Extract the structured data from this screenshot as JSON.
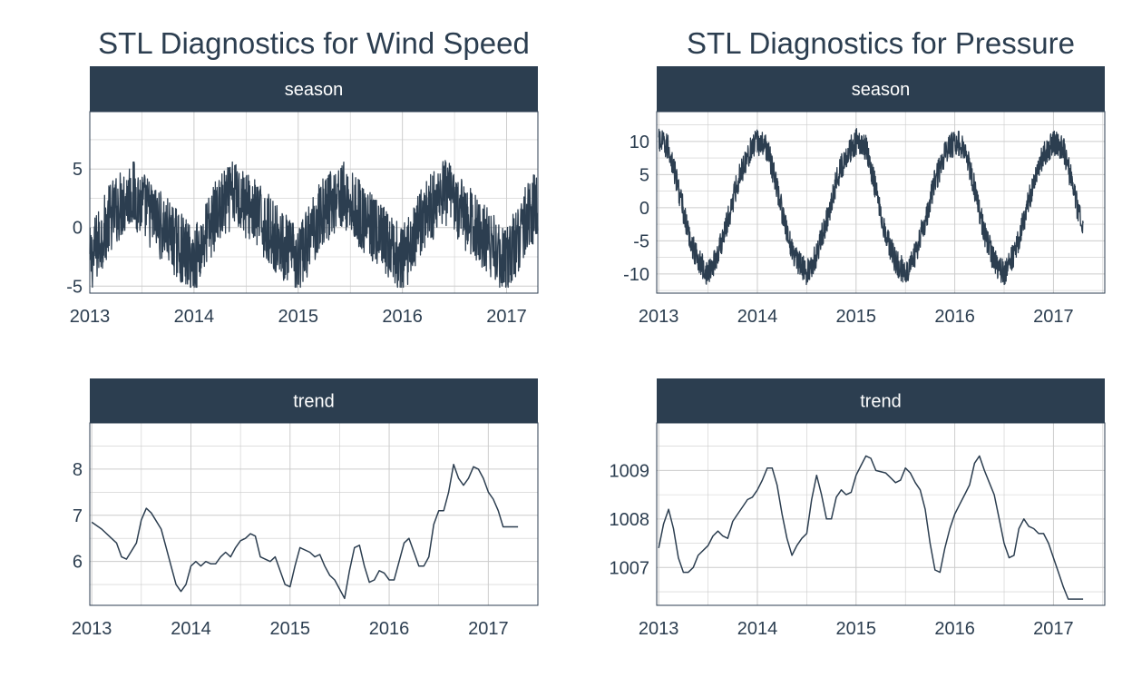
{
  "titles": {
    "left": "STL Diagnostics for Wind Speed",
    "right": "STL Diagnostics for Pressure"
  },
  "colors": {
    "strip": "#2c3e50",
    "strip_text": "#ffffff",
    "line": "#2c3e50",
    "grid": "#cccccc",
    "axis_text": "#2c3e50"
  },
  "chart_data": [
    {
      "type": "line",
      "group": "Wind Speed",
      "facet": "season",
      "xlim": [
        2013.0,
        2017.3
      ],
      "x_ticks": [
        "2013",
        "2014",
        "2015",
        "2016",
        "2017"
      ],
      "y_ticks": [
        "5",
        "0",
        "-5"
      ],
      "y_tick_values": [
        5,
        0,
        -5
      ],
      "ylim": [
        -5.6,
        9.9
      ],
      "approx": true,
      "profile": {
        "x": [
          2013.0,
          2013.1,
          2013.2,
          2013.3,
          2013.4,
          2013.5,
          2013.6,
          2013.7,
          2013.8,
          2013.9,
          2014.0
        ],
        "y": [
          -3.0,
          -1.0,
          1.0,
          2.0,
          3.0,
          2.0,
          1.0,
          0.0,
          -1.0,
          -2.0,
          -3.0
        ]
      },
      "noise": 3.0,
      "xrange": [
        2013.0,
        2017.3
      ],
      "yclip": [
        -5.1,
        8.8
      ],
      "n": 1550
    },
    {
      "type": "line",
      "group": "Pressure",
      "facet": "season",
      "xlim": [
        2012.98,
        2017.52
      ],
      "x_ticks": [
        "2013",
        "2014",
        "2015",
        "2016",
        "2017"
      ],
      "y_ticks": [
        "10",
        "5",
        "0",
        "-5",
        "-10"
      ],
      "y_tick_values": [
        10,
        5,
        0,
        -5,
        -10
      ],
      "ylim": [
        -12.9,
        14.5
      ],
      "approx": true,
      "profile": {
        "x": [
          2013.0,
          2013.1,
          2013.2,
          2013.3,
          2013.4,
          2013.5,
          2013.6,
          2013.7,
          2013.8,
          2013.9,
          2014.0
        ],
        "y": [
          10,
          9,
          3,
          -4,
          -8,
          -10,
          -7,
          -2,
          4,
          8,
          10
        ]
      },
      "noise": 2.0,
      "xrange": [
        2013.0,
        2017.3
      ],
      "yclip": [
        -11.6,
        13.0
      ],
      "n": 1550
    },
    {
      "type": "line",
      "group": "Wind Speed",
      "facet": "trend",
      "xlim": [
        2012.98,
        2017.5
      ],
      "x_ticks": [
        "2013",
        "2014",
        "2015",
        "2016",
        "2017"
      ],
      "y_ticks": [
        "8",
        "7",
        "6"
      ],
      "y_tick_values": [
        8,
        7,
        6
      ],
      "ylim": [
        5.05,
        9.0
      ],
      "x": [
        2013.0,
        2013.1,
        2013.2,
        2013.25,
        2013.3,
        2013.35,
        2013.45,
        2013.5,
        2013.55,
        2013.6,
        2013.7,
        2013.75,
        2013.8,
        2013.85,
        2013.9,
        2013.95,
        2014.0,
        2014.05,
        2014.1,
        2014.15,
        2014.2,
        2014.25,
        2014.3,
        2014.35,
        2014.4,
        2014.45,
        2014.5,
        2014.55,
        2014.6,
        2014.65,
        2014.7,
        2014.8,
        2014.85,
        2014.9,
        2014.95,
        2015.0,
        2015.05,
        2015.1,
        2015.2,
        2015.25,
        2015.3,
        2015.35,
        2015.4,
        2015.45,
        2015.55,
        2015.6,
        2015.65,
        2015.7,
        2015.75,
        2015.8,
        2015.85,
        2015.9,
        2015.95,
        2016.0,
        2016.05,
        2016.1,
        2016.15,
        2016.2,
        2016.25,
        2016.3,
        2016.35,
        2016.4,
        2016.45,
        2016.5,
        2016.55,
        2016.6,
        2016.65,
        2016.7,
        2016.75,
        2016.8,
        2016.85,
        2016.9,
        2016.95,
        2017.0,
        2017.05,
        2017.1,
        2017.15,
        2017.2,
        2017.25,
        2017.3
      ],
      "y": [
        6.85,
        6.7,
        6.5,
        6.4,
        6.1,
        6.05,
        6.4,
        6.9,
        7.15,
        7.05,
        6.7,
        6.3,
        5.9,
        5.5,
        5.35,
        5.5,
        5.9,
        6.0,
        5.9,
        6.0,
        5.95,
        5.95,
        6.1,
        6.2,
        6.1,
        6.3,
        6.45,
        6.5,
        6.6,
        6.55,
        6.1,
        6.0,
        6.1,
        5.8,
        5.5,
        5.45,
        5.9,
        6.3,
        6.2,
        6.1,
        6.15,
        5.9,
        5.7,
        5.6,
        5.2,
        5.8,
        6.3,
        6.35,
        5.9,
        5.55,
        5.6,
        5.8,
        5.75,
        5.6,
        5.6,
        6.0,
        6.4,
        6.5,
        6.2,
        5.9,
        5.9,
        6.1,
        6.8,
        7.1,
        7.1,
        7.5,
        8.1,
        7.8,
        7.65,
        7.8,
        8.05,
        8.0,
        7.8,
        7.5,
        7.35,
        7.1,
        6.75,
        6.75,
        6.75,
        6.75
      ]
    },
    {
      "type": "line",
      "group": "Pressure",
      "facet": "trend",
      "xlim": [
        2012.98,
        2017.52
      ],
      "x_ticks": [
        "2013",
        "2014",
        "2015",
        "2016",
        "2017"
      ],
      "y_ticks": [
        "1009",
        "1008",
        "1007"
      ],
      "y_tick_values": [
        1009,
        1008,
        1007
      ],
      "ylim": [
        1006.22,
        1009.98
      ],
      "x": [
        2013.0,
        2013.05,
        2013.1,
        2013.15,
        2013.2,
        2013.25,
        2013.3,
        2013.35,
        2013.4,
        2013.5,
        2013.55,
        2013.6,
        2013.65,
        2013.7,
        2013.75,
        2013.8,
        2013.85,
        2013.9,
        2013.95,
        2014.0,
        2014.05,
        2014.1,
        2014.15,
        2014.2,
        2014.25,
        2014.3,
        2014.35,
        2014.4,
        2014.45,
        2014.5,
        2014.55,
        2014.6,
        2014.65,
        2014.7,
        2014.75,
        2014.8,
        2014.85,
        2014.9,
        2014.95,
        2015.0,
        2015.05,
        2015.1,
        2015.15,
        2015.2,
        2015.3,
        2015.35,
        2015.4,
        2015.45,
        2015.5,
        2015.55,
        2015.6,
        2015.65,
        2015.7,
        2015.75,
        2015.8,
        2015.85,
        2015.9,
        2015.95,
        2016.0,
        2016.05,
        2016.1,
        2016.15,
        2016.2,
        2016.25,
        2016.3,
        2016.35,
        2016.4,
        2016.45,
        2016.5,
        2016.55,
        2016.6,
        2016.65,
        2016.7,
        2016.75,
        2016.8,
        2016.85,
        2016.9,
        2016.95,
        2017.0,
        2017.05,
        2017.1,
        2017.15,
        2017.2,
        2017.25,
        2017.3
      ],
      "y": [
        1007.4,
        1007.9,
        1008.2,
        1007.8,
        1007.2,
        1006.9,
        1006.9,
        1007.0,
        1007.25,
        1007.45,
        1007.65,
        1007.75,
        1007.65,
        1007.6,
        1007.95,
        1008.1,
        1008.25,
        1008.4,
        1008.45,
        1008.6,
        1008.8,
        1009.05,
        1009.05,
        1008.7,
        1008.1,
        1007.6,
        1007.25,
        1007.45,
        1007.6,
        1007.7,
        1008.4,
        1008.9,
        1008.5,
        1008.0,
        1008.0,
        1008.45,
        1008.6,
        1008.5,
        1008.55,
        1008.9,
        1009.1,
        1009.3,
        1009.25,
        1009.0,
        1008.95,
        1008.85,
        1008.75,
        1008.8,
        1009.05,
        1008.95,
        1008.75,
        1008.6,
        1008.2,
        1007.5,
        1006.95,
        1006.9,
        1007.4,
        1007.8,
        1008.1,
        1008.3,
        1008.5,
        1008.7,
        1009.15,
        1009.3,
        1009.0,
        1008.75,
        1008.5,
        1008.0,
        1007.5,
        1007.2,
        1007.25,
        1007.8,
        1008.0,
        1007.85,
        1007.8,
        1007.7,
        1007.7,
        1007.5,
        1007.2,
        1006.9,
        1006.6,
        1006.35,
        1006.35,
        1006.35,
        1006.35
      ]
    }
  ]
}
